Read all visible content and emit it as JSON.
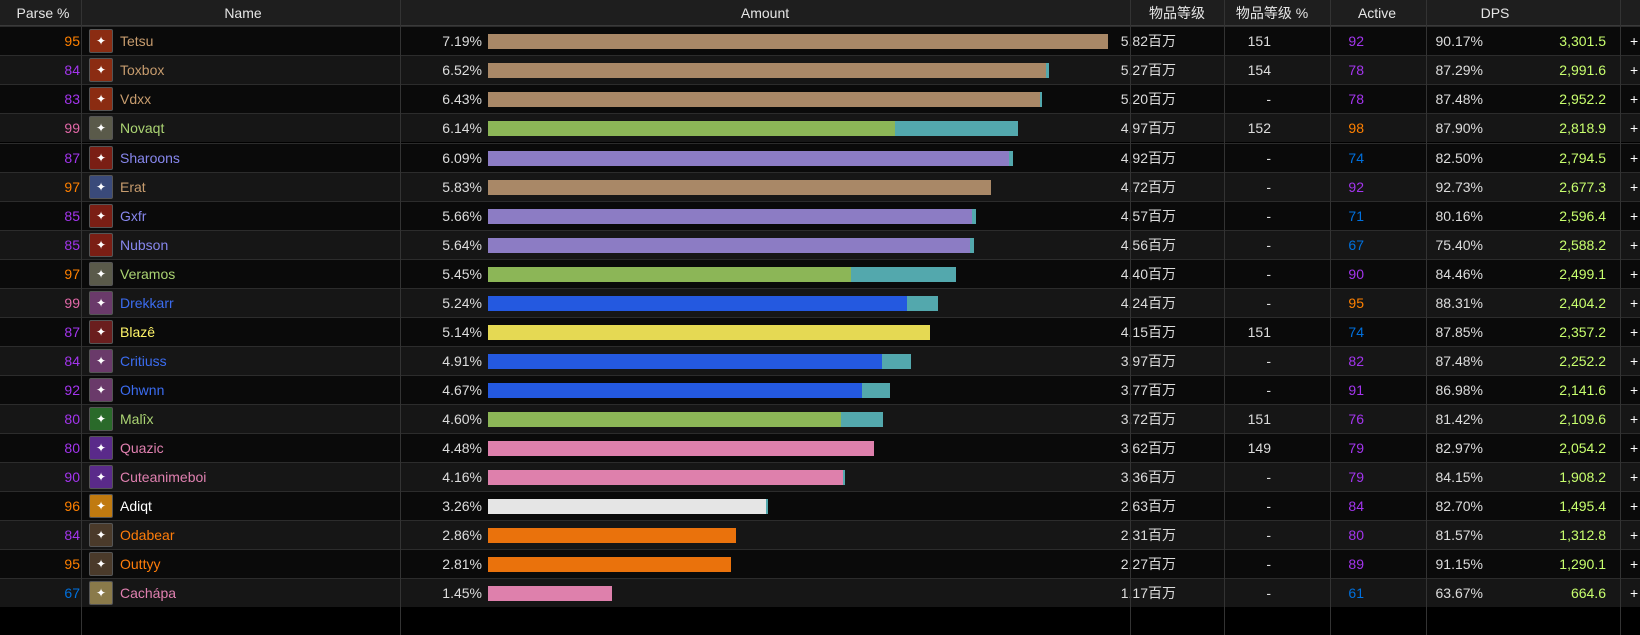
{
  "headers": {
    "parse": "Parse %",
    "name": "Name",
    "amount": "Amount",
    "ilvl": "物品等级",
    "ilvl_pct": "物品等级 %",
    "active": "Active",
    "dps": "DPS"
  },
  "colors": {
    "hunter_bar": "#a98867",
    "mage_bar": "#6c70c3",
    "monk_bar": "#8cb657",
    "shaman_bar": "#2459e0",
    "rogue_bar": "#e5d953",
    "warlock_bar": "#de80ac",
    "priest_bar": "#e5e5e5",
    "druid_bar": "#ea720c",
    "overlay_bar": "#53a8ad",
    "parse_orange": "#ff8000",
    "parse_purple": "#a335ee",
    "parse_pink": "#e268a8",
    "parse_blue": "#0070dd",
    "dps_green": "#c8ff6e"
  },
  "rows": [
    {
      "parse": "95",
      "parse_color": "#ff8000",
      "icon": "hunter-class-icon",
      "icon_bg": "#8b2c12",
      "name": "Tetsu",
      "name_color": "#c79c6e",
      "pct": "7.19%",
      "bar1": 1.0,
      "bar2": 0.0,
      "bar_color": "#a98867",
      "amount": "5.82百万",
      "ilvl": "151",
      "ilvl_pct": "92",
      "ilvl_pct_color": "#a335ee",
      "active": "90.17%",
      "dps": "3,301.5",
      "plus": "+"
    },
    {
      "parse": "84",
      "parse_color": "#a335ee",
      "icon": "hunter-class-icon",
      "icon_bg": "#8b2c12",
      "name": "Toxbox",
      "name_color": "#c79c6e",
      "pct": "6.52%",
      "bar1": 0.9,
      "bar2": 0.005,
      "bar_color": "#a98867",
      "amount": "5.27百万",
      "ilvl": "154",
      "ilvl_pct": "78",
      "ilvl_pct_color": "#a335ee",
      "active": "87.29%",
      "dps": "2,991.6",
      "plus": "+"
    },
    {
      "parse": "83",
      "parse_color": "#a335ee",
      "icon": "hunter-class-icon",
      "icon_bg": "#8b2c12",
      "name": "Vdxx",
      "name_color": "#c79c6e",
      "pct": "6.43%",
      "bar1": 0.89,
      "bar2": 0.004,
      "bar_color": "#a98867",
      "amount": "5.20百万",
      "ilvl": "-",
      "ilvl_pct": "78",
      "ilvl_pct_color": "#a335ee",
      "active": "87.48%",
      "dps": "2,952.2",
      "plus": "+"
    },
    {
      "parse": "99",
      "parse_color": "#e268a8",
      "icon": "monk-class-icon",
      "icon_bg": "#5a5a4a",
      "name": "Novaqt",
      "name_color": "#abd473",
      "pct": "6.14%",
      "bar1": 0.657,
      "bar2": 0.198,
      "bar_color": "#8cb657",
      "amount": "4.97百万",
      "ilvl": "152",
      "ilvl_pct": "98",
      "ilvl_pct_color": "#ff8000",
      "active": "87.90%",
      "dps": "2,818.9",
      "plus": "+"
    },
    {
      "parse": "87",
      "parse_color": "#a335ee",
      "icon": "mage-class-icon",
      "icon_bg": "#7a1e14",
      "name": "Sharoons",
      "name_color": "#8787ed",
      "pct": "6.09%",
      "bar1": 0.84,
      "bar2": 0.006,
      "bar_color": "#8c7cc4",
      "amount": "4.92百万",
      "ilvl": "-",
      "ilvl_pct": "74",
      "ilvl_pct_color": "#0070dd",
      "active": "82.50%",
      "dps": "2,794.5",
      "plus": "+"
    },
    {
      "parse": "97",
      "parse_color": "#ff8000",
      "icon": "hunter-class-icon",
      "icon_bg": "#3a4a7a",
      "name": "Erat",
      "name_color": "#c79c6e",
      "pct": "5.83%",
      "bar1": 0.812,
      "bar2": 0.0,
      "bar_color": "#a98867",
      "amount": "4.72百万",
      "ilvl": "-",
      "ilvl_pct": "92",
      "ilvl_pct_color": "#a335ee",
      "active": "92.73%",
      "dps": "2,677.3",
      "plus": "+"
    },
    {
      "parse": "85",
      "parse_color": "#a335ee",
      "icon": "mage-class-icon",
      "icon_bg": "#7a1e14",
      "name": "Gxfr",
      "name_color": "#8787ed",
      "pct": "5.66%",
      "bar1": 0.78,
      "bar2": 0.006,
      "bar_color": "#8c7cc4",
      "amount": "4.57百万",
      "ilvl": "-",
      "ilvl_pct": "71",
      "ilvl_pct_color": "#0070dd",
      "active": "80.16%",
      "dps": "2,596.4",
      "plus": "+"
    },
    {
      "parse": "85",
      "parse_color": "#a335ee",
      "icon": "mage-class-icon",
      "icon_bg": "#7a1e14",
      "name": "Nubson",
      "name_color": "#8787ed",
      "pct": "5.64%",
      "bar1": 0.777,
      "bar2": 0.006,
      "bar_color": "#8c7cc4",
      "amount": "4.56百万",
      "ilvl": "-",
      "ilvl_pct": "67",
      "ilvl_pct_color": "#0070dd",
      "active": "75.40%",
      "dps": "2,588.2",
      "plus": "+"
    },
    {
      "parse": "97",
      "parse_color": "#ff8000",
      "icon": "monk-class-icon",
      "icon_bg": "#5a5a4a",
      "name": "Veramos",
      "name_color": "#abd473",
      "pct": "5.45%",
      "bar1": 0.586,
      "bar2": 0.17,
      "bar_color": "#8cb657",
      "amount": "4.40百万",
      "ilvl": "-",
      "ilvl_pct": "90",
      "ilvl_pct_color": "#a335ee",
      "active": "84.46%",
      "dps": "2,499.1",
      "plus": "+"
    },
    {
      "parse": "99",
      "parse_color": "#e268a8",
      "icon": "shaman-class-icon",
      "icon_bg": "#6a3a6a",
      "name": "Drekkarr",
      "name_color": "#3b6cf0",
      "pct": "5.24%",
      "bar1": 0.676,
      "bar2": 0.05,
      "bar_color": "#2459e0",
      "amount": "4.24百万",
      "ilvl": "-",
      "ilvl_pct": "95",
      "ilvl_pct_color": "#ff8000",
      "active": "88.31%",
      "dps": "2,404.2",
      "plus": "+"
    },
    {
      "parse": "87",
      "parse_color": "#a335ee",
      "icon": "rogue-class-icon",
      "icon_bg": "#6a1e1e",
      "name": "Blazê",
      "name_color": "#fff569",
      "pct": "5.14%",
      "bar1": 0.713,
      "bar2": 0.0,
      "bar_color": "#e5d953",
      "amount": "4.15百万",
      "ilvl": "151",
      "ilvl_pct": "74",
      "ilvl_pct_color": "#0070dd",
      "active": "87.85%",
      "dps": "2,357.2",
      "plus": "+"
    },
    {
      "parse": "84",
      "parse_color": "#a335ee",
      "icon": "shaman-class-icon",
      "icon_bg": "#6a3a6a",
      "name": "Critiuss",
      "name_color": "#3b6cf0",
      "pct": "4.91%",
      "bar1": 0.635,
      "bar2": 0.047,
      "bar_color": "#2459e0",
      "amount": "3.97百万",
      "ilvl": "-",
      "ilvl_pct": "82",
      "ilvl_pct_color": "#a335ee",
      "active": "87.48%",
      "dps": "2,252.2",
      "plus": "+"
    },
    {
      "parse": "92",
      "parse_color": "#a335ee",
      "icon": "shaman-class-icon",
      "icon_bg": "#6a3a6a",
      "name": "Ohwnn",
      "name_color": "#3b6cf0",
      "pct": "4.67%",
      "bar1": 0.603,
      "bar2": 0.045,
      "bar_color": "#2459e0",
      "amount": "3.77百万",
      "ilvl": "-",
      "ilvl_pct": "91",
      "ilvl_pct_color": "#a335ee",
      "active": "86.98%",
      "dps": "2,141.6",
      "plus": "+"
    },
    {
      "parse": "80",
      "parse_color": "#a335ee",
      "icon": "monk-class-icon",
      "icon_bg": "#2a6a2a",
      "name": "Malîx",
      "name_color": "#abd473",
      "pct": "4.60%",
      "bar1": 0.57,
      "bar2": 0.067,
      "bar_color": "#8cb657",
      "amount": "3.72百万",
      "ilvl": "151",
      "ilvl_pct": "76",
      "ilvl_pct_color": "#a335ee",
      "active": "81.42%",
      "dps": "2,109.6",
      "plus": "+"
    },
    {
      "parse": "80",
      "parse_color": "#a335ee",
      "icon": "warlock-class-icon",
      "icon_bg": "#5a2a8a",
      "name": "Quazic",
      "name_color": "#e080b0",
      "pct": "4.48%",
      "bar1": 0.622,
      "bar2": 0.0,
      "bar_color": "#de80ac",
      "amount": "3.62百万",
      "ilvl": "149",
      "ilvl_pct": "79",
      "ilvl_pct_color": "#a335ee",
      "active": "82.97%",
      "dps": "2,054.2",
      "plus": "+"
    },
    {
      "parse": "90",
      "parse_color": "#a335ee",
      "icon": "warlock-class-icon",
      "icon_bg": "#5a2a8a",
      "name": "Cuteanimeboi",
      "name_color": "#e080b0",
      "pct": "4.16%",
      "bar1": 0.573,
      "bar2": 0.004,
      "bar_color": "#de80ac",
      "amount": "3.36百万",
      "ilvl": "-",
      "ilvl_pct": "79",
      "ilvl_pct_color": "#a335ee",
      "active": "84.15%",
      "dps": "1,908.2",
      "plus": "+"
    },
    {
      "parse": "96",
      "parse_color": "#ff8000",
      "icon": "priest-class-icon",
      "icon_bg": "#c07a10",
      "name": "Adiqt",
      "name_color": "#ffffff",
      "pct": "3.26%",
      "bar1": 0.448,
      "bar2": 0.004,
      "bar_color": "#e5e5e5",
      "amount": "2.63百万",
      "ilvl": "-",
      "ilvl_pct": "84",
      "ilvl_pct_color": "#a335ee",
      "active": "82.70%",
      "dps": "1,495.4",
      "plus": "+"
    },
    {
      "parse": "84",
      "parse_color": "#a335ee",
      "icon": "druid-class-icon",
      "icon_bg": "#4a3a2a",
      "name": "Odabear",
      "name_color": "#ff7d0a",
      "pct": "2.86%",
      "bar1": 0.4,
      "bar2": 0.0,
      "bar_color": "#ea720c",
      "amount": "2.31百万",
      "ilvl": "-",
      "ilvl_pct": "80",
      "ilvl_pct_color": "#a335ee",
      "active": "81.57%",
      "dps": "1,312.8",
      "plus": "+"
    },
    {
      "parse": "95",
      "parse_color": "#ff8000",
      "icon": "druid-class-icon",
      "icon_bg": "#4a3a2a",
      "name": "Outtyy",
      "name_color": "#ff7d0a",
      "pct": "2.81%",
      "bar1": 0.392,
      "bar2": 0.0,
      "bar_color": "#ea720c",
      "amount": "2.27百万",
      "ilvl": "-",
      "ilvl_pct": "89",
      "ilvl_pct_color": "#a335ee",
      "active": "91.15%",
      "dps": "1,290.1",
      "plus": "+"
    },
    {
      "parse": "67",
      "parse_color": "#0070dd",
      "icon": "warlock-class-icon",
      "icon_bg": "#8a7a4a",
      "name": "Cachápa",
      "name_color": "#e080b0",
      "pct": "1.45%",
      "bar1": 0.2,
      "bar2": 0.0,
      "bar_color": "#de80ac",
      "amount": "1.17百万",
      "ilvl": "-",
      "ilvl_pct": "61",
      "ilvl_pct_color": "#0070dd",
      "active": "63.67%",
      "dps": "664.6",
      "plus": "+"
    }
  ]
}
